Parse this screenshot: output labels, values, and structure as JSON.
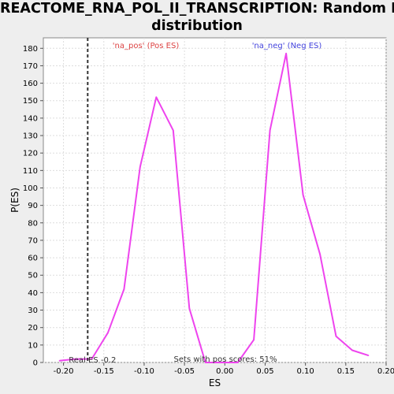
{
  "chart_data": {
    "type": "line",
    "title_line1": "REACTOME_RNA_POL_II_TRANSCRIPTION: Random ES",
    "title_line2": "distribution",
    "xlabel": "ES",
    "ylabel": "P(ES)",
    "xlim": [
      -0.225,
      0.2
    ],
    "ylim": [
      0,
      186
    ],
    "x_ticks": [
      -0.2,
      -0.15,
      -0.1,
      -0.05,
      0.0,
      0.05,
      0.1,
      0.15,
      0.2
    ],
    "x_tick_labels": [
      "-0.20",
      "-0.15",
      "-0.10",
      "-0.05",
      "0.00",
      "0.05",
      "0.10",
      "0.15",
      "0.20"
    ],
    "y_ticks": [
      0,
      10,
      20,
      30,
      40,
      50,
      60,
      70,
      80,
      90,
      100,
      110,
      120,
      130,
      140,
      150,
      160,
      170,
      180
    ],
    "grid": true,
    "series": [
      {
        "color": "#ee44ee",
        "x": [
          -0.205,
          -0.185,
          -0.165,
          -0.145,
          -0.125,
          -0.105,
          -0.085,
          -0.064,
          -0.044,
          -0.024,
          -0.004,
          0.016,
          0.036,
          0.056,
          0.076,
          0.097,
          0.118,
          0.138,
          0.158,
          0.178
        ],
        "y": [
          1,
          2,
          2,
          17,
          42,
          112,
          152,
          133,
          31,
          0,
          0,
          0,
          13,
          133,
          177,
          96,
          62,
          15,
          7,
          4
        ]
      }
    ],
    "real_es": -0.17,
    "annotations": {
      "pos_label": "'na_pos' (Pos ES)",
      "neg_label": "'na_neg' (Neg ES)",
      "real_es_label": "Real ES -0.2",
      "pos_scores_label": "Sets with pos scores: 51%"
    },
    "colors": {
      "line": "#ee44ee",
      "pos_label": "#dd4444",
      "neg_label": "#4444dd",
      "grid": "#dddddd",
      "real_es_line": "#333333"
    }
  }
}
